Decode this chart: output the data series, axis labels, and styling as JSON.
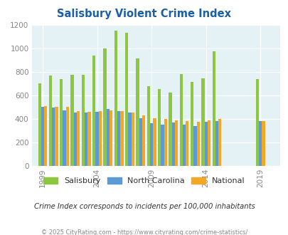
{
  "title": "Salisbury Violent Crime Index",
  "valid_years": [
    1999,
    2000,
    2001,
    2002,
    2003,
    2004,
    2005,
    2006,
    2007,
    2008,
    2009,
    2010,
    2011,
    2012,
    2013,
    2014,
    2015,
    2019
  ],
  "sal_vals": [
    700,
    770,
    735,
    775,
    775,
    935,
    1000,
    1150,
    1130,
    915,
    675,
    655,
    625,
    780,
    710,
    745,
    975,
    735
  ],
  "nc_vals": [
    500,
    495,
    470,
    455,
    450,
    460,
    480,
    465,
    455,
    405,
    360,
    350,
    370,
    350,
    335,
    375,
    380,
    380
  ],
  "nat_vals": [
    505,
    500,
    500,
    465,
    460,
    465,
    470,
    465,
    450,
    430,
    405,
    395,
    385,
    380,
    375,
    385,
    395,
    380
  ],
  "colors": {
    "salisbury": "#8dc63f",
    "north_carolina": "#5b9bd5",
    "national": "#f5a623"
  },
  "ylim": [
    0,
    1200
  ],
  "yticks": [
    0,
    200,
    400,
    600,
    800,
    1000,
    1200
  ],
  "xtick_years": [
    1999,
    2004,
    2009,
    2014,
    2019
  ],
  "bg_color": "#e4f2f5",
  "subtitle": "Crime Index corresponds to incidents per 100,000 inhabitants",
  "footer": "© 2025 CityRating.com - https://www.cityrating.com/crime-statistics/",
  "bar_width": 0.28,
  "fig_bg": "#ffffff",
  "title_color": "#1a5fa8",
  "subtitle_color": "#333333",
  "footer_color": "#888888",
  "tick_color": "#888888",
  "legend_labels": [
    "Salisbury",
    "North Carolina",
    "National"
  ]
}
